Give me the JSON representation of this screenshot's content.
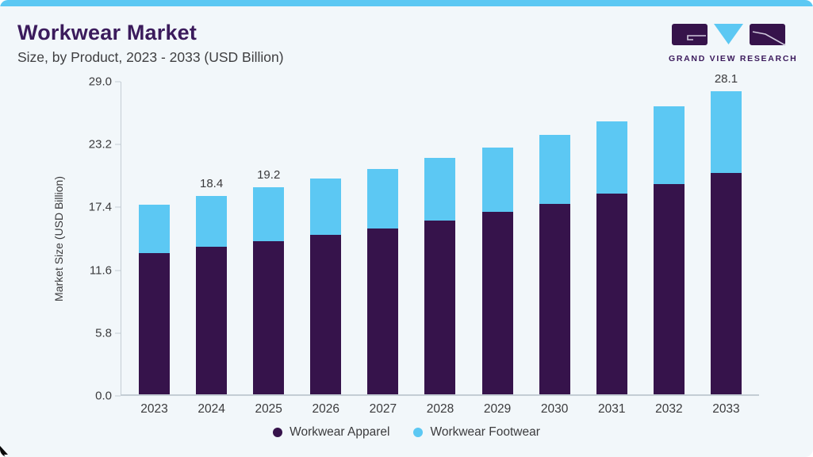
{
  "header": {
    "title": "Workwear Market",
    "subtitle": "Size, by Product, 2023 - 2033 (USD Billion)",
    "logo_caption": "GRAND VIEW RESEARCH"
  },
  "colors": {
    "background": "#F2F7FA",
    "top_strip": "#5CC8F3",
    "title": "#3B1B5C",
    "body_text": "#3B3B3D",
    "axis": "#C4CDD4",
    "apparel": "#36134B",
    "footwear": "#5CC8F3"
  },
  "chart_data": {
    "type": "bar",
    "stacked": true,
    "title": "Workwear Market Size, by Product, 2023 - 2033 (USD Billion)",
    "categories": [
      "2023",
      "2024",
      "2025",
      "2026",
      "2027",
      "2028",
      "2029",
      "2030",
      "2031",
      "2032",
      "2033"
    ],
    "series": [
      {
        "name": "Workwear Apparel",
        "color": "#36134B",
        "values": [
          13.1,
          13.7,
          14.2,
          14.8,
          15.4,
          16.1,
          16.9,
          17.7,
          18.6,
          19.5,
          20.5
        ]
      },
      {
        "name": "Workwear Footwear",
        "color": "#5CC8F3",
        "values": [
          4.5,
          4.7,
          5.0,
          5.2,
          5.5,
          5.8,
          6.0,
          6.4,
          6.7,
          7.2,
          7.6
        ]
      }
    ],
    "totals": [
      17.6,
      18.4,
      19.2,
      20.0,
      20.9,
      21.9,
      22.9,
      24.1,
      25.3,
      26.7,
      28.1
    ],
    "data_labels": [
      "",
      "18.4",
      "19.2",
      "",
      "",
      "",
      "",
      "",
      "",
      "",
      "28.1"
    ],
    "xlabel": "",
    "ylabel": "Market Size (USD Billion)",
    "yticks": [
      0.0,
      5.8,
      11.6,
      17.4,
      23.2,
      29.0
    ],
    "ylim": [
      0,
      29.0
    ],
    "grid": false,
    "legend": [
      "Workwear Apparel",
      "Workwear Footwear"
    ],
    "legend_position": "bottom"
  }
}
